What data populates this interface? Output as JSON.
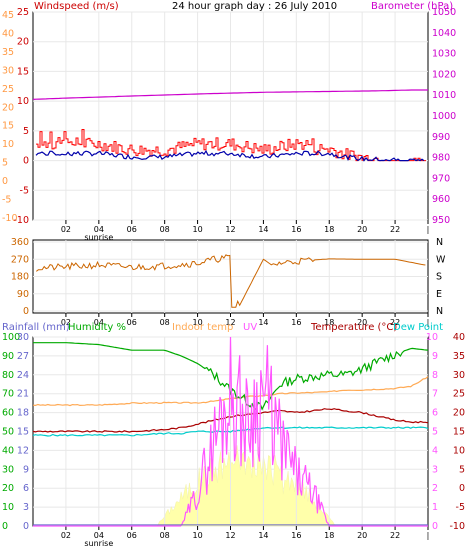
{
  "colors": {
    "wind": "#cc0000",
    "gust": "#ff0000",
    "windavg": "#0000aa",
    "baro": "#cc00cc",
    "winddir": "#cc6600",
    "rain": "#6666cc",
    "humidity": "#00aa00",
    "indoor": "#ffaa55",
    "uv": "#ff55ff",
    "temp": "#aa0000",
    "dew": "#00cccc",
    "solar": "#ffffaa",
    "axis": "#000000",
    "grid": "#e8e8e8",
    "frame": "#000000"
  },
  "header": {
    "windspeed_label": "Windspeed (m/s)",
    "title": "24 hour graph day : 26 July 2010",
    "baro_label": "Barometer (hPa)"
  },
  "panel1": {
    "left_outer_ticks": [
      "45",
      "40",
      "35",
      "30",
      "25",
      "20",
      "15",
      "10",
      "5",
      "0",
      "-5",
      "-10"
    ],
    "left_inner_ticks": [
      "25",
      "20",
      "15",
      "10",
      "5",
      "0",
      "-5",
      "-10"
    ],
    "right_ticks": [
      "1050",
      "1040",
      "1030",
      "1020",
      "1010",
      "1000",
      "990",
      "980",
      "970",
      "960",
      "950"
    ]
  },
  "panel2": {
    "left_ticks": [
      "360",
      "270",
      "180",
      "90",
      "0"
    ],
    "right_ticks": [
      "N",
      "W",
      "S",
      "E",
      "N"
    ]
  },
  "panel3": {
    "labels": {
      "rain": "Rainfall (mm)",
      "humidity": "Humidity %",
      "indoor": "Indoor temp",
      "uv": "UV",
      "temp": "Temperature (°C)",
      "dew": "Dew Point"
    },
    "hum_ticks": [
      "100",
      "90",
      "80",
      "70",
      "60",
      "50",
      "40",
      "30",
      "20",
      "10",
      "0"
    ],
    "rain_ticks": [
      "30",
      "27",
      "24",
      "21",
      "18",
      "15",
      "12",
      "9",
      "6",
      "3",
      "0"
    ],
    "uv_ticks": [
      "10",
      "9",
      "8",
      "7",
      "6",
      "5",
      "4",
      "3",
      "2",
      "1",
      "0"
    ],
    "temp_ticks": [
      "40",
      "35",
      "30",
      "25",
      "20",
      "15",
      "10",
      "5",
      "0",
      "-5",
      "-10"
    ]
  },
  "xaxis": {
    "ticks": [
      "02",
      "04",
      "06",
      "08",
      "10",
      "12",
      "14",
      "16",
      "18",
      "20",
      "22"
    ],
    "sunrise_label": "sunrise"
  },
  "chart_data": [
    {
      "type": "line",
      "title": "24 hour graph day : 26 July 2010",
      "x": [
        0,
        2,
        4,
        6,
        8,
        10,
        12,
        14,
        16,
        18,
        19,
        20,
        21,
        22,
        23,
        24
      ],
      "series": [
        {
          "name": "Barometer (hPa)",
          "values": [
            1008,
            1008.6,
            1009.1,
            1009.6,
            1010.1,
            1010.6,
            1011,
            1011.4,
            1011.6,
            1011.8,
            1011.9,
            1012,
            1012.1,
            1012.3,
            1012.5,
            1012.5
          ]
        },
        {
          "name": "Windspeed (m/s)",
          "values": [
            2,
            2,
            2,
            1,
            1,
            2,
            2,
            1,
            2,
            2,
            1,
            0.5,
            0.3,
            0.2,
            0,
            0
          ]
        }
      ],
      "ylabel": "Windspeed (m/s)",
      "y2label": "Barometer (hPa)",
      "ylim": [
        -10,
        25
      ],
      "y2lim": [
        950,
        1050
      ]
    },
    {
      "type": "line",
      "x": [
        0,
        2,
        4,
        6,
        8,
        10,
        11,
        12,
        12.5,
        14,
        14.5,
        15,
        16,
        18,
        20,
        22,
        23.8,
        24
      ],
      "series": [
        {
          "name": "Wind direction",
          "values": [
            222,
            230,
            240,
            228,
            236,
            250,
            270,
            280,
            20,
            270,
            240,
            250,
            260,
            272,
            270,
            270,
            240,
            240
          ]
        }
      ],
      "ylim": [
        0,
        360
      ]
    },
    {
      "type": "line",
      "x": [
        0,
        2,
        4,
        6,
        8,
        9,
        10,
        11,
        12,
        13,
        14,
        15,
        16,
        17,
        18,
        19,
        20,
        21,
        22,
        23,
        24
      ],
      "series": [
        {
          "name": "Humidity %",
          "values": [
            97,
            97,
            96,
            93,
            93,
            90,
            86,
            80,
            72,
            66,
            62,
            75,
            78,
            79,
            80,
            80,
            83,
            87,
            91,
            94,
            93
          ]
        },
        {
          "name": "Indoor temp",
          "values": [
            22,
            22,
            22,
            22.5,
            22.6,
            22.6,
            22.6,
            23,
            23.7,
            24.2,
            24.5,
            25,
            25.2,
            25.3,
            25.5,
            26,
            26,
            26.2,
            26.4,
            27,
            29.5
          ]
        },
        {
          "name": "Temperature (°C)",
          "values": [
            15,
            15,
            15,
            15,
            15.5,
            16,
            17,
            18,
            19,
            19.5,
            20,
            20.5,
            20,
            20.5,
            21,
            20.5,
            20,
            19,
            18,
            17.5,
            17.5
          ]
        },
        {
          "name": "Dew Point",
          "values": [
            14,
            14,
            14,
            14,
            14.5,
            14.5,
            15,
            15,
            15,
            15.5,
            16,
            16,
            16,
            16,
            16,
            16,
            16,
            16,
            16,
            16,
            16
          ]
        },
        {
          "name": "UV",
          "values": [
            0,
            0,
            0,
            0,
            0,
            0,
            2,
            5,
            8,
            6,
            8,
            5,
            3,
            2,
            0,
            0,
            0,
            0,
            0,
            0,
            0
          ]
        },
        {
          "name": "Rainfall (mm)",
          "values": [
            0,
            0,
            0,
            0,
            0,
            0,
            0,
            0,
            0,
            0,
            0,
            0,
            0,
            0,
            0,
            0,
            0,
            0,
            0,
            0,
            0
          ]
        }
      ],
      "ylim": [
        0,
        100
      ]
    }
  ]
}
